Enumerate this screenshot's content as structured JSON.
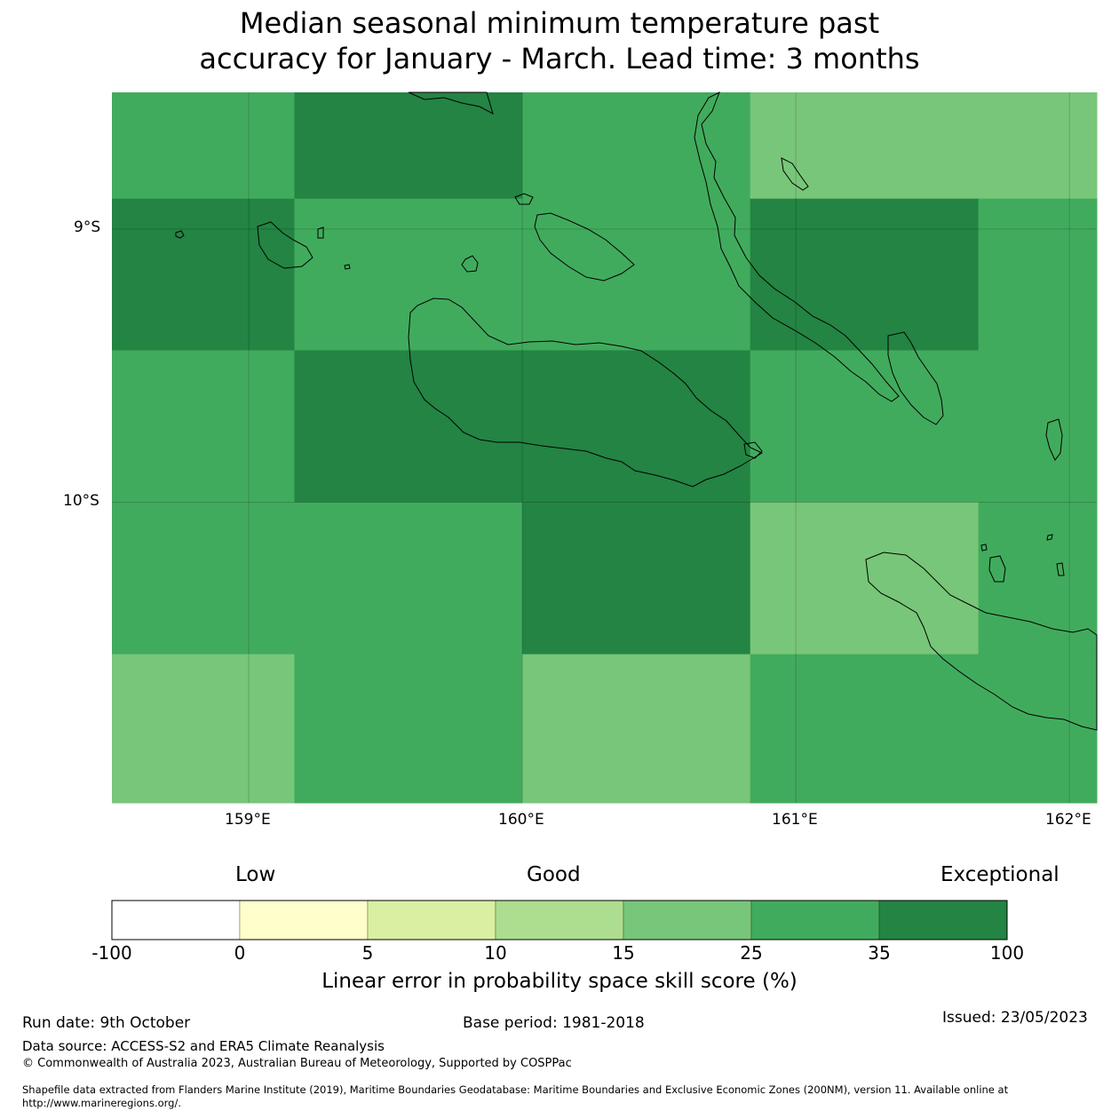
{
  "title_line1": "Median seasonal minimum temperature past",
  "title_line2": "accuracy for January - March. Lead time: 3 months",
  "map": {
    "lat_labels": [
      "9°S",
      "10°S"
    ],
    "lon_labels": [
      "159°E",
      "160°E",
      "161°E",
      "162°E"
    ],
    "lon_values": [
      159,
      160,
      161,
      162
    ],
    "lat_values": [
      -9,
      -10
    ],
    "extent": {
      "lon_min": 158.5,
      "lon_max": 162.1,
      "lat_min": -11.1,
      "lat_max": -8.5
    },
    "grid_lon_edges": [
      158.5,
      159.167,
      160.0,
      160.833,
      161.667,
      162.1
    ],
    "grid_lat_edges": [
      -8.5,
      -8.889,
      -9.444,
      -10.0,
      -10.556,
      -11.1
    ],
    "category_colors": {
      "15-25": "#78c679",
      "25-35": "#41ab5d",
      "35-100": "#238443"
    },
    "cells": [
      [
        "25-35",
        "35-100",
        "25-35",
        "15-25",
        "15-25"
      ],
      [
        "35-100",
        "25-35",
        "25-35",
        "35-100",
        "25-35"
      ],
      [
        "25-35",
        "35-100",
        "35-100",
        "25-35",
        "25-35"
      ],
      [
        "25-35",
        "25-35",
        "35-100",
        "15-25",
        "25-35"
      ],
      [
        "15-25",
        "25-35",
        "15-25",
        "25-35",
        "25-35"
      ]
    ]
  },
  "colorbar": {
    "category_labels": [
      "Low",
      "Good",
      "Exceptional"
    ],
    "ticks": [
      "-100",
      "0",
      "5",
      "10",
      "15",
      "25",
      "35",
      "100"
    ],
    "colors": [
      "#ffffff",
      "#ffffcc",
      "#d9f0a3",
      "#addd8e",
      "#78c679",
      "#41ab5d",
      "#238443"
    ],
    "title": "Linear error in probability space skill score (%)"
  },
  "footer": {
    "run_date": "Run date: 9th October",
    "base_period": "Base period: 1981-2018",
    "issued": "Issued: 23/05/2023",
    "data_source": "Data source: ACCESS-S2 and ERA5 Climate Reanalysis",
    "copyright": "© Commonwealth of Australia 2023, Australian Bureau of Meteorology, Supported by COSPPac",
    "shapefile_line1": "Shapefile data extracted from Flanders Marine Institute (2019), Maritime Boundaries Geodatabase: Maritime Boundaries and Exclusive Economic Zones (200NM), version 11. Available online at",
    "shapefile_line2": "http://www.marineregions.org/."
  }
}
